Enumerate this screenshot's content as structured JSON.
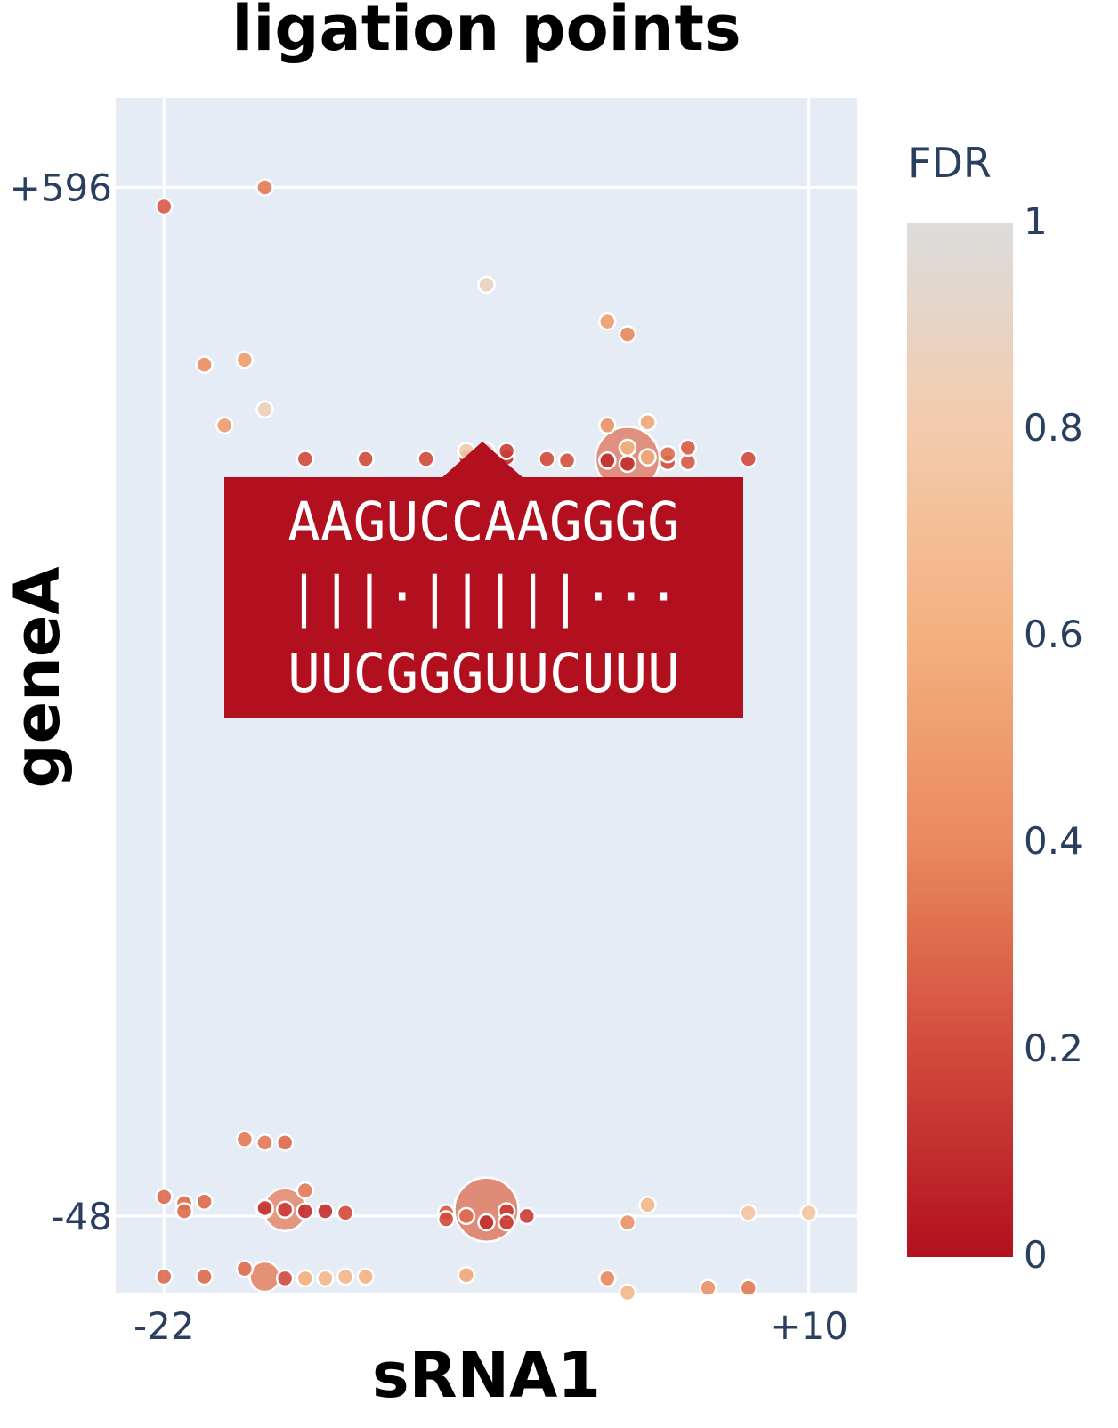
{
  "chart_data": {
    "type": "scatter",
    "title": "ligation points",
    "xlabel": "sRNA1",
    "ylabel": "geneA",
    "x_ticks": [
      {
        "value": -22,
        "label": "-22"
      },
      {
        "value": 10,
        "label": "+10"
      }
    ],
    "y_ticks": [
      {
        "value": 596,
        "label": "+596"
      },
      {
        "value": -48,
        "label": "-48"
      }
    ],
    "xlim": [
      -24.4,
      12.4
    ],
    "ylim": [
      -96,
      652
    ],
    "grid": true,
    "plot_bg": "#e5ecf6",
    "colorbar": {
      "title": "FDR",
      "range": [
        0,
        1
      ],
      "ticks": [
        "0",
        "0.2",
        "0.4",
        "0.6",
        "0.8",
        "1"
      ],
      "colorscale": [
        "#b2101e",
        "#d24a3c",
        "#e98a5e",
        "#f4b07f",
        "#f3cbac",
        "#dcdcdc"
      ]
    },
    "points": [
      {
        "x": -22,
        "y": 584,
        "fdr": 0.25
      },
      {
        "x": -17,
        "y": 596,
        "fdr": 0.35
      },
      {
        "x": -20,
        "y": 485,
        "fdr": 0.42
      },
      {
        "x": -18,
        "y": 488,
        "fdr": 0.5
      },
      {
        "x": -19,
        "y": 447,
        "fdr": 0.5
      },
      {
        "x": -17,
        "y": 457,
        "fdr": 0.85
      },
      {
        "x": -15,
        "y": 426,
        "fdr": 0.2
      },
      {
        "x": -12,
        "y": 426,
        "fdr": 0.2
      },
      {
        "x": -9,
        "y": 426,
        "fdr": 0.2
      },
      {
        "x": -7,
        "y": 427,
        "fdr": 0.12
      },
      {
        "x": -7,
        "y": 431,
        "fdr": 0.8
      },
      {
        "x": -6,
        "y": 427,
        "fdr": 0.1
      },
      {
        "x": -6,
        "y": 431,
        "fdr": 0.9
      },
      {
        "x": -5,
        "y": 427,
        "fdr": 0.1
      },
      {
        "x": -5,
        "y": 431,
        "fdr": 0.15
      },
      {
        "x": -6,
        "y": 535,
        "fdr": 0.88
      },
      {
        "x": -3,
        "y": 426,
        "fdr": 0.2
      },
      {
        "x": -2,
        "y": 425,
        "fdr": 0.22
      },
      {
        "x": 0,
        "y": 512,
        "fdr": 0.5
      },
      {
        "x": 1,
        "y": 504,
        "fdr": 0.4
      },
      {
        "x": 0,
        "y": 447,
        "fdr": 0.45
      },
      {
        "x": 2,
        "y": 449,
        "fdr": 0.55
      },
      {
        "x": 1,
        "y": 426,
        "fdr": 0.3,
        "size": 72,
        "opacity": 0.7
      },
      {
        "x": 1,
        "y": 433,
        "fdr": 0.6
      },
      {
        "x": 0,
        "y": 425,
        "fdr": 0.1
      },
      {
        "x": 1,
        "y": 423,
        "fdr": 0.1
      },
      {
        "x": 2,
        "y": 427,
        "fdr": 0.55
      },
      {
        "x": 3,
        "y": 424,
        "fdr": 0.2
      },
      {
        "x": 3,
        "y": 429,
        "fdr": 0.3
      },
      {
        "x": 4,
        "y": 424,
        "fdr": 0.25
      },
      {
        "x": 4,
        "y": 433,
        "fdr": 0.25
      },
      {
        "x": 7,
        "y": 426,
        "fdr": 0.2
      },
      {
        "x": -17,
        "y": -2,
        "fdr": 0.35
      },
      {
        "x": -18,
        "y": 0,
        "fdr": 0.35
      },
      {
        "x": -16,
        "y": -2,
        "fdr": 0.3
      },
      {
        "x": -22,
        "y": -36,
        "fdr": 0.3
      },
      {
        "x": -21,
        "y": -40,
        "fdr": 0.3
      },
      {
        "x": -21,
        "y": -45,
        "fdr": 0.3
      },
      {
        "x": -20,
        "y": -39,
        "fdr": 0.3
      },
      {
        "x": -16,
        "y": -44,
        "fdr": 0.35,
        "size": 48,
        "opacity": 0.75
      },
      {
        "x": -17,
        "y": -44,
        "fdr": 0.1
      },
      {
        "x": -17,
        "y": -43,
        "fdr": 0.15
      },
      {
        "x": -16,
        "y": -44,
        "fdr": 0.15
      },
      {
        "x": -15,
        "y": -32,
        "fdr": 0.35
      },
      {
        "x": -15,
        "y": -45,
        "fdr": 0.1
      },
      {
        "x": -14,
        "y": -45,
        "fdr": 0.1
      },
      {
        "x": -13,
        "y": -46,
        "fdr": 0.2
      },
      {
        "x": -8,
        "y": -46,
        "fdr": 0.25
      },
      {
        "x": -8,
        "y": -50,
        "fdr": 0.2
      },
      {
        "x": -7,
        "y": -48,
        "fdr": 0.3
      },
      {
        "x": -6,
        "y": -44,
        "fdr": 0.3,
        "size": 72,
        "opacity": 0.75
      },
      {
        "x": -6,
        "y": -52,
        "fdr": 0.1
      },
      {
        "x": -5,
        "y": -45,
        "fdr": 0.15
      },
      {
        "x": -5,
        "y": -52,
        "fdr": 0.15
      },
      {
        "x": -4,
        "y": -48,
        "fdr": 0.15
      },
      {
        "x": 1,
        "y": -52,
        "fdr": 0.45
      },
      {
        "x": 2,
        "y": -41,
        "fdr": 0.65
      },
      {
        "x": 7,
        "y": -46,
        "fdr": 0.75
      },
      {
        "x": 10,
        "y": -46,
        "fdr": 0.75
      },
      {
        "x": -22,
        "y": -86,
        "fdr": 0.3
      },
      {
        "x": -20,
        "y": -86,
        "fdr": 0.3
      },
      {
        "x": -18,
        "y": -81,
        "fdr": 0.3
      },
      {
        "x": -17,
        "y": -86,
        "fdr": 0.35,
        "size": 34,
        "opacity": 0.8
      },
      {
        "x": -16,
        "y": -87,
        "fdr": 0.2
      },
      {
        "x": -15,
        "y": -87,
        "fdr": 0.6
      },
      {
        "x": -14,
        "y": -87,
        "fdr": 0.65
      },
      {
        "x": -13,
        "y": -86,
        "fdr": 0.65
      },
      {
        "x": -12,
        "y": -86,
        "fdr": 0.62
      },
      {
        "x": -7,
        "y": -85,
        "fdr": 0.55
      },
      {
        "x": 0,
        "y": -87,
        "fdr": 0.4
      },
      {
        "x": 1,
        "y": -96,
        "fdr": 0.65
      },
      {
        "x": 5,
        "y": -93,
        "fdr": 0.45
      },
      {
        "x": 7,
        "y": -93,
        "fdr": 0.35
      }
    ],
    "hover": {
      "lines": [
        "AAGUCCAAGGGG",
        "|||·|||||···",
        "UUCGGGUUCUUU"
      ]
    }
  }
}
